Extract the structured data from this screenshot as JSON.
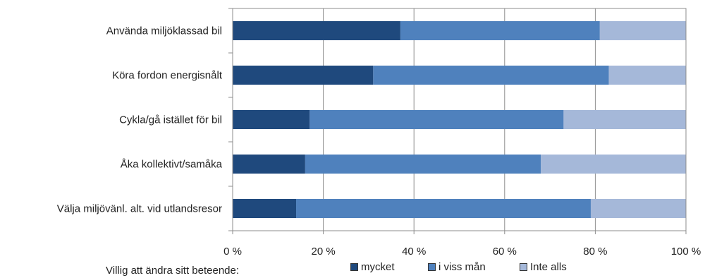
{
  "chart_data": {
    "type": "bar",
    "orientation": "horizontal",
    "stacked": true,
    "percent": true,
    "categories": [
      "Använda miljöklassad bil",
      "Köra fordon energisnålt",
      "Cykla/gå istället för bil",
      "Åka kollektivt/samåka",
      "Välja miljövänl. alt. vid utlandsresor"
    ],
    "series": [
      {
        "name": "mycket",
        "color": "#1f497d",
        "values": [
          37,
          31,
          17,
          16,
          14
        ]
      },
      {
        "name": "i viss mån",
        "color": "#4f81bd",
        "values": [
          44,
          52,
          56,
          52,
          65
        ]
      },
      {
        "name": "Inte alls",
        "color": "#a5b8d9",
        "values": [
          19,
          17,
          27,
          32,
          21
        ]
      }
    ],
    "xlim": [
      0,
      100
    ],
    "xticks": [
      "0 %",
      "20 %",
      "40 %",
      "60 %",
      "80 %",
      "100 %"
    ],
    "grid": true,
    "legend_title": "Villig att ändra sitt beteende:",
    "legend_position": "bottom"
  }
}
